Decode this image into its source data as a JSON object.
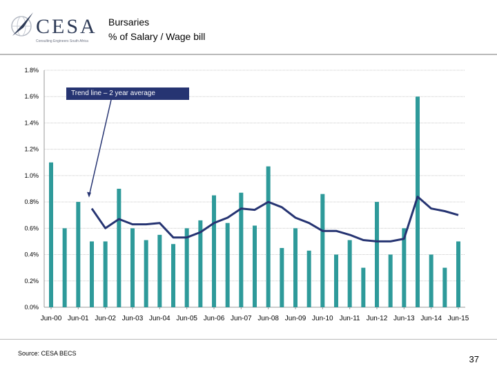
{
  "header": {
    "logo_text": "CESA",
    "logo_subtext": "Consulting Engineers South Africa",
    "title_line1": "Bursaries",
    "title_line2": "% of Salary / Wage bill"
  },
  "footer": {
    "source": "Source: CESA BECS",
    "page_number": "37"
  },
  "colors": {
    "bar": "#2e9a9a",
    "trend": "#263472",
    "grid": "#c8c8c8",
    "axis": "#9a9a9a"
  },
  "chart_data": {
    "type": "bar",
    "title": "Bursaries % of Salary / Wage bill",
    "xlabel": "",
    "ylabel": "",
    "ylim": [
      0,
      1.8
    ],
    "y_ticks": [
      "0.0%",
      "0.2%",
      "0.4%",
      "0.6%",
      "0.8%",
      "1.0%",
      "1.2%",
      "1.4%",
      "1.6%",
      "1.8%"
    ],
    "grid": true,
    "categories": [
      "Jun-00",
      "Dec-00",
      "Jun-01",
      "Dec-01",
      "Jun-02",
      "Dec-02",
      "Jun-03",
      "Dec-03",
      "Jun-04",
      "Dec-04",
      "Jun-05",
      "Dec-05",
      "Jun-06",
      "Dec-06",
      "Jun-07",
      "Dec-07",
      "Jun-08",
      "Dec-08",
      "Jun-09",
      "Dec-09",
      "Jun-10",
      "Dec-10",
      "Jun-11",
      "Dec-11",
      "Jun-12",
      "Dec-12",
      "Jun-13",
      "Dec-13",
      "Jun-14",
      "Dec-14",
      "Jun-15"
    ],
    "x_tick_labels": [
      "Jun-00",
      "Jun-01",
      "Jun-02",
      "Jun-03",
      "Jun-04",
      "Jun-05",
      "Jun-06",
      "Jun-07",
      "Jun-08",
      "Jun-09",
      "Jun-10",
      "Jun-11",
      "Jun-12",
      "Jun-13",
      "Jun-14",
      "Jun-15"
    ],
    "series": [
      {
        "name": "Bursaries % of salary",
        "kind": "bar",
        "values": [
          1.1,
          0.6,
          0.8,
          0.5,
          0.5,
          0.9,
          0.6,
          0.51,
          0.55,
          0.48,
          0.6,
          0.66,
          0.85,
          0.64,
          0.87,
          0.62,
          1.07,
          0.45,
          0.6,
          0.43,
          0.86,
          0.4,
          0.51,
          0.3,
          0.8,
          0.4,
          0.6,
          1.6,
          0.4,
          0.3,
          0.5
        ]
      },
      {
        "name": "Trend line – 2 year average",
        "kind": "line",
        "values": [
          null,
          null,
          null,
          0.75,
          0.6,
          0.67,
          0.63,
          0.63,
          0.64,
          0.53,
          0.53,
          0.57,
          0.64,
          0.68,
          0.75,
          0.74,
          0.8,
          0.76,
          0.68,
          0.64,
          0.58,
          0.58,
          0.55,
          0.51,
          0.5,
          0.5,
          0.52,
          0.84,
          0.75,
          0.73,
          0.7
        ]
      }
    ],
    "annotations": [
      {
        "text": "Trend line – 2 year average",
        "points_to": "Dec-01"
      }
    ]
  }
}
